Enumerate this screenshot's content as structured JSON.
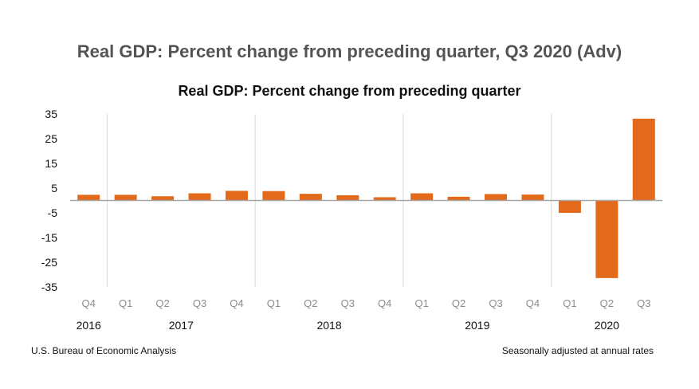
{
  "page": {
    "title": "Real GDP: Percent change from preceding quarter, Q3 2020 (Adv)",
    "source": "U.S. Bureau of Economic Analysis",
    "note": "Seasonally adjusted at annual rates"
  },
  "chart_data": {
    "type": "bar",
    "title": "Real GDP:  Percent change from preceding quarter",
    "xlabel": "",
    "ylabel": "",
    "categories": [
      "Q4",
      "Q1",
      "Q2",
      "Q3",
      "Q4",
      "Q1",
      "Q2",
      "Q3",
      "Q4",
      "Q1",
      "Q2",
      "Q3",
      "Q4",
      "Q1",
      "Q2",
      "Q3"
    ],
    "years": [
      {
        "label": "2016",
        "start": 0,
        "end": 0
      },
      {
        "label": "2017",
        "start": 1,
        "end": 4
      },
      {
        "label": "2018",
        "start": 5,
        "end": 8
      },
      {
        "label": "2019",
        "start": 9,
        "end": 12
      },
      {
        "label": "2020",
        "start": 13,
        "end": 15
      }
    ],
    "values": [
      2.3,
      2.3,
      1.7,
      2.9,
      3.9,
      3.8,
      2.7,
      2.1,
      1.3,
      2.9,
      1.5,
      2.6,
      2.4,
      -5.0,
      -31.4,
      33.1
    ],
    "yticks": [
      35,
      25,
      15,
      5,
      -5,
      -15,
      -25,
      -35
    ],
    "ylim": [
      -35,
      35
    ],
    "grid": false,
    "legend": "none",
    "bar_color": "#e26a1a"
  }
}
